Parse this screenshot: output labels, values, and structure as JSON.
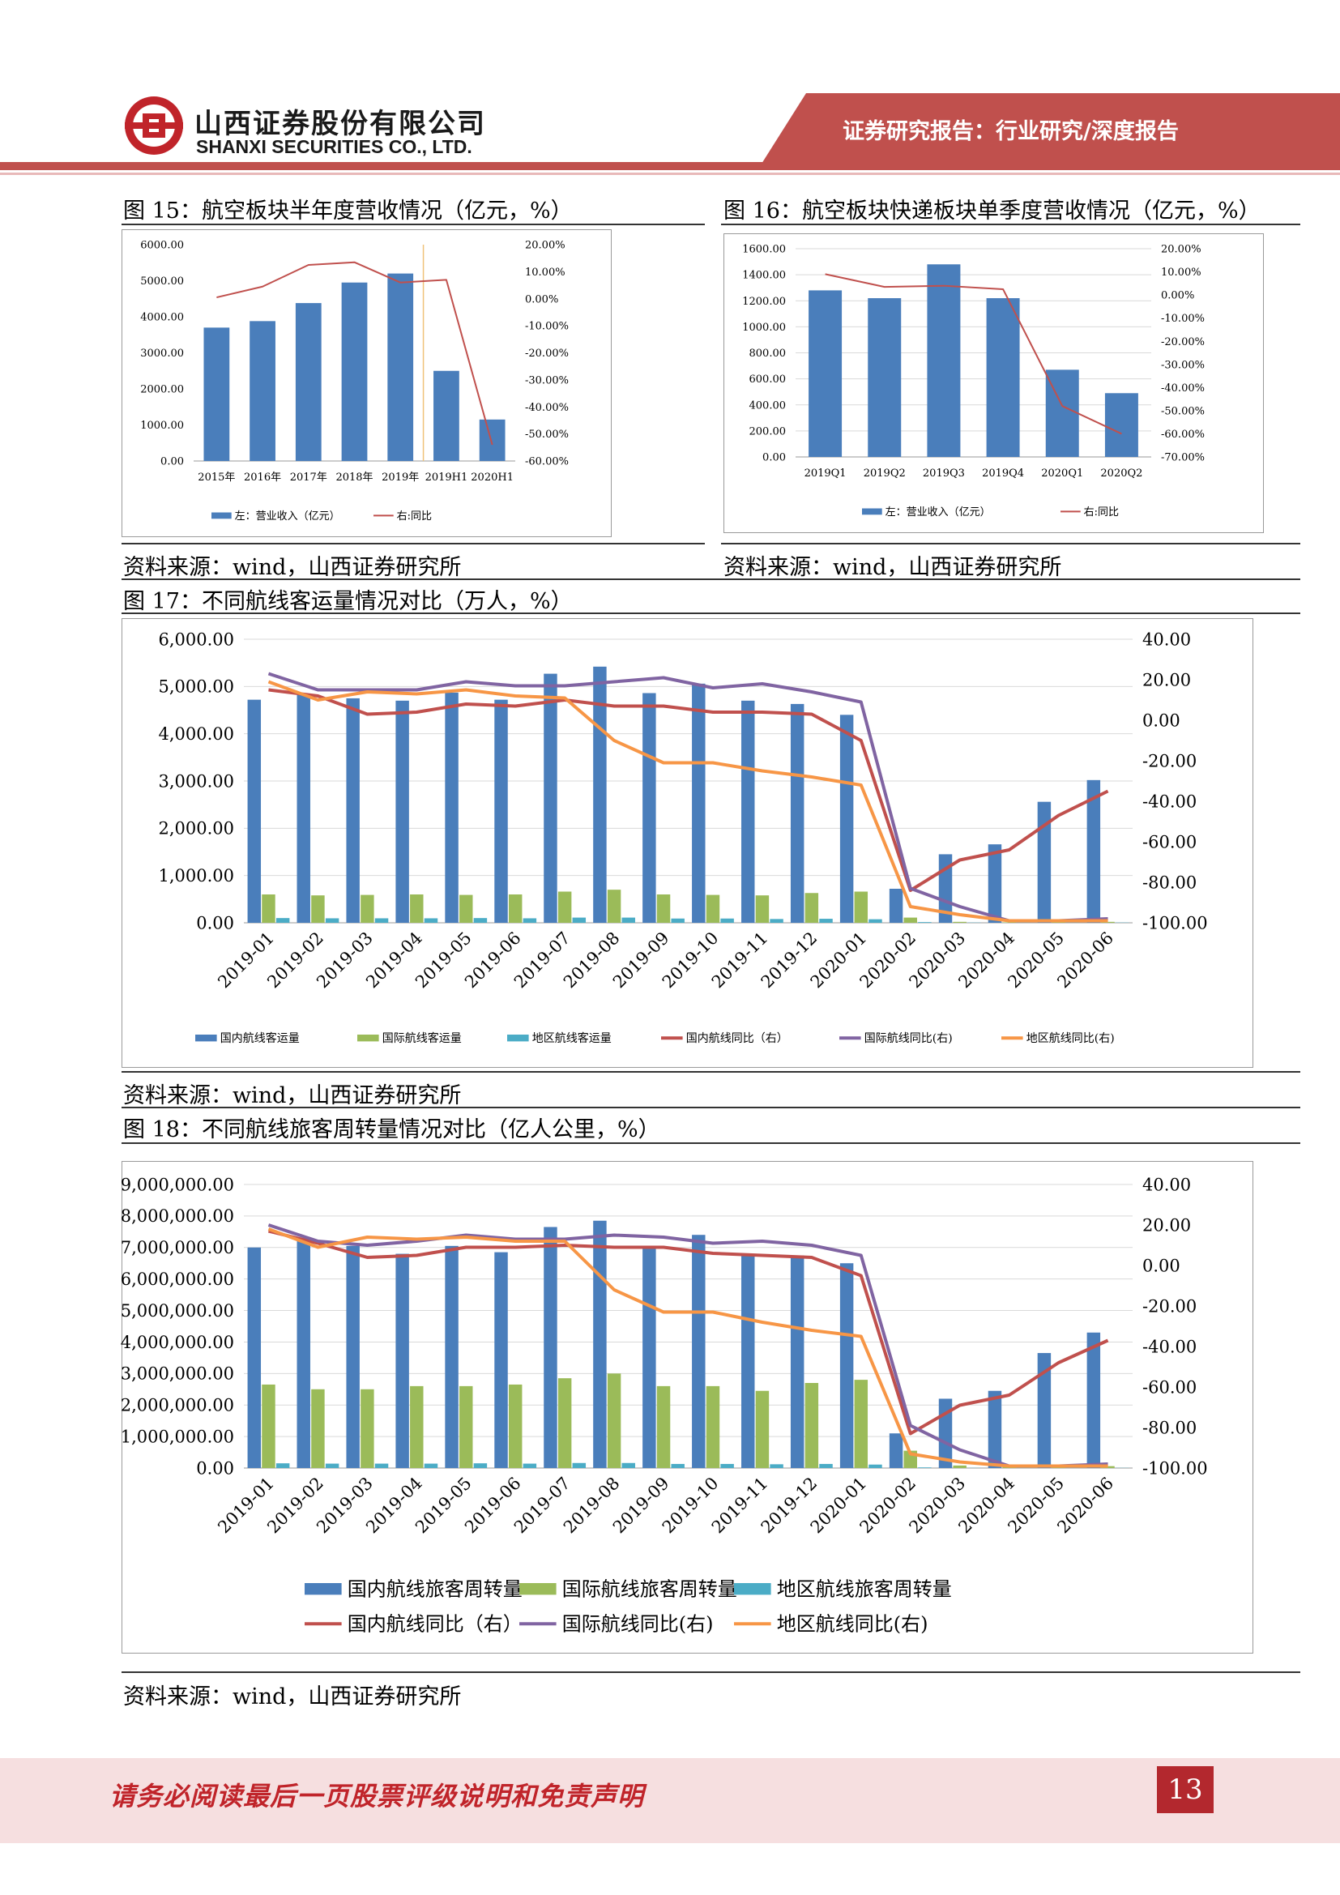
{
  "header": {
    "company_cn": "山西证券股份有限公司",
    "company_en": "SHANXI SECURITIES CO., LTD.",
    "report_type": "证券研究报告：行业研究/深度报告",
    "brand_color": "#c0242a"
  },
  "source_note": "资料来源：wind，山西证券研究所",
  "footer": {
    "disclaimer": "请务必阅读最后一页股票评级说明和免责声明",
    "page_number": "13"
  },
  "chart_data": [
    {
      "id": "fig15",
      "type": "bar",
      "caption": "图 15：航空板块半年度营收情况（亿元，%）",
      "categories": [
        "2015年",
        "2016年",
        "2017年",
        "2018年",
        "2019年",
        "2019H1",
        "2020H1"
      ],
      "series": [
        {
          "name": "左：营业收入（亿元）",
          "axis": "left",
          "type": "bar",
          "color": "#4a7ebb",
          "values": [
            3700,
            3880,
            4380,
            4950,
            5200,
            2500,
            1150
          ]
        },
        {
          "name": "右:同比",
          "axis": "right",
          "type": "line",
          "color": "#c0504d",
          "values": [
            0.5,
            4.5,
            12.5,
            13.5,
            6.0,
            7.0,
            -54.0
          ]
        }
      ],
      "left_ticks": [
        "0.00",
        "1000.00",
        "2000.00",
        "3000.00",
        "4000.00",
        "5000.00",
        "6000.00"
      ],
      "right_ticks": [
        "-60.00%",
        "-50.00%",
        "-40.00%",
        "-30.00%",
        "-20.00%",
        "-10.00%",
        "0.00%",
        "10.00%",
        "20.00%"
      ],
      "ylim_left": [
        0,
        6000
      ],
      "ylim_right": [
        -60,
        20
      ]
    },
    {
      "id": "fig16",
      "type": "bar",
      "caption": "图 16：航空板块快递板块单季度营收情况（亿元，%）",
      "categories": [
        "2019Q1",
        "2019Q2",
        "2019Q3",
        "2019Q4",
        "2020Q1",
        "2020Q2"
      ],
      "series": [
        {
          "name": "左：营业收入（亿元）",
          "axis": "left",
          "type": "bar",
          "color": "#4a7ebb",
          "values": [
            1280,
            1220,
            1480,
            1220,
            670,
            490
          ]
        },
        {
          "name": "右:同比",
          "axis": "right",
          "type": "line",
          "color": "#c0504d",
          "values": [
            9.0,
            3.5,
            4.0,
            2.5,
            -48.0,
            -60.0
          ]
        }
      ],
      "left_ticks": [
        "0.00",
        "200.00",
        "400.00",
        "600.00",
        "800.00",
        "1000.00",
        "1200.00",
        "1400.00",
        "1600.00"
      ],
      "right_ticks": [
        "-70.00%",
        "-60.00%",
        "-50.00%",
        "-40.00%",
        "-30.00%",
        "-20.00%",
        "-10.00%",
        "0.00%",
        "10.00%",
        "20.00%"
      ],
      "ylim_left": [
        0,
        1600
      ],
      "ylim_right": [
        -70,
        20
      ]
    },
    {
      "id": "fig17",
      "type": "bar",
      "caption": "图 17：不同航线客运量情况对比（万人，%）",
      "categories": [
        "2019-01",
        "2019-02",
        "2019-03",
        "2019-04",
        "2019-05",
        "2019-06",
        "2019-07",
        "2019-08",
        "2019-09",
        "2019-10",
        "2019-11",
        "2019-12",
        "2020-01",
        "2020-02",
        "2020-03",
        "2020-04",
        "2020-05",
        "2020-06"
      ],
      "series": [
        {
          "name": "国内航线客运量",
          "axis": "left",
          "type": "bar",
          "color": "#4a7ebb",
          "values": [
            4720,
            4850,
            4750,
            4700,
            4870,
            4720,
            5270,
            5420,
            4860,
            5060,
            4700,
            4630,
            4400,
            720,
            1450,
            1660,
            2560,
            3020
          ]
        },
        {
          "name": "国际航线客运量",
          "axis": "left",
          "type": "bar",
          "color": "#9bbb59",
          "values": [
            600,
            580,
            590,
            600,
            590,
            600,
            660,
            700,
            600,
            590,
            580,
            630,
            660,
            110,
            20,
            10,
            15,
            20
          ]
        },
        {
          "name": "地区航线客运量",
          "axis": "left",
          "type": "bar",
          "color": "#4bacc6",
          "values": [
            100,
            95,
            95,
            95,
            100,
            95,
            110,
            110,
            90,
            90,
            80,
            85,
            75,
            15,
            5,
            2,
            3,
            5
          ]
        },
        {
          "name": "国内航线同比（右）",
          "axis": "right",
          "type": "line",
          "color": "#c0504d",
          "values": [
            15,
            12,
            3,
            4,
            8,
            7,
            10,
            7,
            7,
            4,
            4,
            3,
            -10,
            -84,
            -69,
            -64,
            -47,
            -35
          ]
        },
        {
          "name": "国际航线同比(右)",
          "axis": "right",
          "type": "line",
          "color": "#8064a2",
          "values": [
            23,
            15,
            15,
            15,
            19,
            17,
            17,
            19,
            21,
            16,
            18,
            14,
            9,
            -83,
            -92,
            -99,
            -99,
            -98
          ]
        },
        {
          "name": "地区航线同比(右)",
          "axis": "right",
          "type": "line",
          "color": "#f79646",
          "values": [
            19,
            10,
            14,
            13,
            15,
            12,
            11,
            -10,
            -21,
            -21,
            -25,
            -28,
            -32,
            -92,
            -96,
            -99,
            -99,
            -99
          ]
        }
      ],
      "left_ticks": [
        "0.00",
        "1,000.00",
        "2,000.00",
        "3,000.00",
        "4,000.00",
        "5,000.00",
        "6,000.00"
      ],
      "right_ticks": [
        "-100.00",
        "-80.00",
        "-60.00",
        "-40.00",
        "-20.00",
        "0.00",
        "20.00",
        "40.00"
      ],
      "ylim_left": [
        0,
        6000
      ],
      "ylim_right": [
        -100,
        40
      ]
    },
    {
      "id": "fig18",
      "type": "bar",
      "caption": "图 18：不同航线旅客周转量情况对比（亿人公里，%）",
      "categories": [
        "2019-01",
        "2019-02",
        "2019-03",
        "2019-04",
        "2019-05",
        "2019-06",
        "2019-07",
        "2019-08",
        "2019-09",
        "2019-10",
        "2019-11",
        "2019-12",
        "2020-01",
        "2020-02",
        "2020-03",
        "2020-04",
        "2020-05",
        "2020-06"
      ],
      "series": [
        {
          "name": "国内航线旅客周转量",
          "axis": "left",
          "type": "bar",
          "color": "#4a7ebb",
          "values": [
            7000000,
            7200000,
            7050000,
            6800000,
            7050000,
            6850000,
            7650000,
            7850000,
            7050000,
            7400000,
            6750000,
            6750000,
            6500000,
            1100000,
            2200000,
            2450000,
            3650000,
            4300000
          ]
        },
        {
          "name": "国际航线旅客周转量",
          "axis": "left",
          "type": "bar",
          "color": "#9bbb59",
          "values": [
            2650000,
            2500000,
            2500000,
            2600000,
            2600000,
            2650000,
            2850000,
            3000000,
            2600000,
            2600000,
            2450000,
            2700000,
            2800000,
            550000,
            80000,
            40000,
            50000,
            60000
          ]
        },
        {
          "name": "地区航线旅客周转量",
          "axis": "left",
          "type": "bar",
          "color": "#4bacc6",
          "values": [
            150000,
            140000,
            140000,
            140000,
            150000,
            140000,
            160000,
            160000,
            130000,
            130000,
            120000,
            130000,
            110000,
            20000,
            5000,
            3000,
            4000,
            5000
          ]
        },
        {
          "name": "国内航线同比（右）",
          "axis": "right",
          "type": "line",
          "color": "#c0504d",
          "values": [
            17,
            11,
            4,
            5,
            9,
            9,
            10,
            9,
            9,
            6,
            5,
            4,
            -5,
            -83,
            -69,
            -64,
            -48,
            -37
          ]
        },
        {
          "name": "国际航线同比(右)",
          "axis": "right",
          "type": "line",
          "color": "#8064a2",
          "values": [
            20,
            12,
            10,
            12,
            15,
            13,
            13,
            15,
            14,
            11,
            12,
            10,
            5,
            -79,
            -91,
            -99,
            -99,
            -98
          ]
        },
        {
          "name": "地区航线同比(右)",
          "axis": "right",
          "type": "line",
          "color": "#f79646",
          "values": [
            18,
            9,
            14,
            13,
            14,
            12,
            12,
            -12,
            -23,
            -23,
            -28,
            -32,
            -35,
            -93,
            -97,
            -99,
            -99,
            -99
          ]
        }
      ],
      "left_ticks": [
        "0.00",
        "1,000,000.00",
        "2,000,000.00",
        "3,000,000.00",
        "4,000,000.00",
        "5,000,000.00",
        "6,000,000.00",
        "7,000,000.00",
        "8,000,000.00",
        "9,000,000.00"
      ],
      "right_ticks": [
        "-100.00",
        "-80.00",
        "-60.00",
        "-40.00",
        "-20.00",
        "0.00",
        "20.00",
        "40.00"
      ],
      "ylim_left": [
        0,
        9000000
      ],
      "ylim_right": [
        -100,
        40
      ]
    }
  ]
}
